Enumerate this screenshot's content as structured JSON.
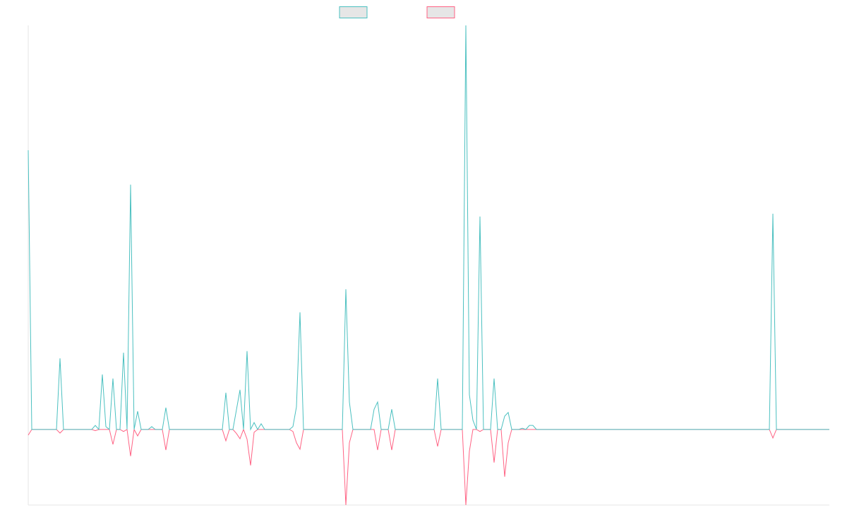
{
  "chart_data": {
    "type": "line",
    "categories": [
      null,
      null,
      null,
      null,
      null,
      null,
      null,
      null,
      null,
      null,
      null,
      null,
      null,
      null,
      null,
      null,
      null,
      null,
      null,
      null,
      null,
      null,
      null,
      null,
      null,
      null,
      null,
      null,
      null,
      null,
      null,
      null,
      null,
      null,
      null,
      null,
      null,
      null,
      null,
      null,
      null,
      null,
      null,
      null,
      null,
      null,
      null,
      null,
      null,
      null,
      null,
      null,
      null,
      null,
      null,
      null,
      null,
      null,
      null,
      null,
      null,
      null,
      null,
      null,
      null,
      null,
      null,
      null,
      null,
      null,
      null,
      null,
      null,
      null,
      null,
      null,
      null,
      null,
      null,
      null,
      null,
      null,
      null,
      null,
      null,
      null,
      null,
      null,
      null,
      null,
      null,
      null,
      null,
      null,
      null,
      null,
      null,
      null,
      null,
      null,
      null,
      null,
      null,
      null,
      null,
      null,
      null,
      null,
      null,
      null,
      null,
      null,
      null,
      null,
      null,
      null,
      null,
      null,
      null,
      null,
      null,
      null,
      null,
      null,
      null,
      null,
      null,
      null,
      null,
      null,
      null,
      null,
      null,
      null,
      null,
      null,
      null,
      null,
      null,
      null,
      null,
      null,
      null,
      null,
      null,
      null,
      null,
      null,
      null,
      null,
      null,
      null,
      null,
      null,
      null,
      null,
      null,
      null,
      null,
      null,
      null,
      null,
      null,
      null,
      null,
      null,
      null,
      null,
      null,
      null,
      null,
      null,
      null,
      null,
      null,
      null,
      null,
      null,
      null,
      null,
      null,
      null,
      null,
      null,
      null,
      null,
      null,
      null,
      null,
      null,
      null,
      null,
      null,
      null,
      null,
      null,
      null,
      null,
      null,
      null,
      null,
      null,
      null,
      null,
      null,
      null,
      null,
      null,
      null,
      null,
      null,
      null,
      null,
      null,
      null,
      null,
      null,
      null,
      null,
      null,
      null,
      null,
      null,
      null,
      null,
      null,
      null,
      null
    ],
    "series": [
      {
        "color": "#4bc0c0",
        "values": [
          69.1,
          0,
          0,
          0,
          0,
          0,
          0,
          0,
          0,
          17.6,
          0,
          0,
          0,
          0,
          0,
          0,
          0,
          0,
          0,
          1,
          0,
          13.6,
          0.7,
          0,
          12.6,
          0,
          0,
          19,
          0,
          60.6,
          0,
          4.5,
          0,
          0,
          0,
          0.7,
          0,
          0,
          0,
          5.4,
          0,
          0,
          0,
          0,
          0,
          0,
          0,
          0,
          0,
          0,
          0,
          0,
          0,
          0,
          0,
          0,
          9.1,
          0,
          0,
          4.9,
          9.8,
          0,
          19.4,
          0,
          1.7,
          0,
          1.4,
          0,
          0,
          0,
          0,
          0,
          0,
          0,
          0,
          0.7,
          5.6,
          29,
          0,
          0,
          0,
          0,
          0,
          0,
          0,
          0,
          0,
          0,
          0,
          0,
          34.7,
          6.8,
          0,
          0,
          0,
          0,
          0,
          0,
          5,
          6.8,
          0,
          0,
          0,
          5,
          0,
          0,
          0,
          0,
          0,
          0,
          0,
          0,
          0,
          0,
          0,
          0,
          12.6,
          0,
          0,
          0,
          0,
          0,
          0,
          0,
          100,
          8.6,
          2.3,
          0,
          52.7,
          0,
          0,
          0,
          12.6,
          0,
          0,
          3.3,
          4.2,
          0,
          0,
          0,
          0.3,
          0,
          1,
          1,
          0,
          0,
          0,
          0,
          0,
          0,
          0,
          0,
          0,
          0,
          0,
          0,
          0,
          0,
          0,
          0,
          0,
          0,
          0,
          0,
          0,
          0,
          0,
          0,
          0,
          0,
          0,
          0,
          0,
          0,
          0,
          0,
          0,
          0,
          0,
          0,
          0,
          0,
          0,
          0,
          0,
          0,
          0,
          0,
          0,
          0,
          0,
          0,
          0,
          0,
          0,
          0,
          0,
          0,
          0,
          0,
          0,
          0,
          0,
          0,
          0,
          0,
          0,
          0,
          0,
          0,
          0,
          53.4,
          0,
          0,
          0,
          0,
          0,
          0,
          0,
          0,
          0,
          0,
          0,
          0,
          0,
          0,
          0,
          0
        ]
      },
      {
        "color": "#ff6384",
        "values": [
          -1.4,
          0,
          0,
          0,
          0,
          0,
          0,
          0,
          0,
          -0.9,
          0,
          0,
          0,
          0,
          0,
          0,
          0,
          0,
          0,
          -0.3,
          0,
          0,
          0,
          0,
          -3.7,
          0,
          0,
          -0.5,
          0,
          -6.6,
          0,
          -1.6,
          0,
          0,
          0,
          0,
          0,
          0,
          0,
          -5.1,
          0,
          0,
          0,
          0,
          0,
          0,
          0,
          0,
          0,
          0,
          0,
          0,
          0,
          0,
          0,
          0,
          -2.8,
          0,
          0,
          -1,
          -2.3,
          0,
          -2.4,
          -8.9,
          -0.7,
          0,
          0,
          0,
          0,
          0,
          0,
          0,
          0,
          0,
          0,
          -0.5,
          -3.3,
          -4.9,
          0,
          0,
          0,
          0,
          0,
          0,
          0,
          0,
          0,
          0,
          0,
          0,
          -18.7,
          -3.3,
          0,
          0,
          0,
          0,
          0,
          0,
          0,
          -5.1,
          0,
          0,
          0,
          -5.1,
          0,
          0,
          0,
          0,
          0,
          0,
          0,
          0,
          0,
          0,
          0,
          0,
          -4.2,
          0,
          0,
          0,
          0,
          0,
          0,
          0,
          -18.7,
          -5.4,
          0,
          0,
          -0.5,
          0,
          0,
          0,
          -8.2,
          0,
          0,
          -11.7,
          -3.3,
          0,
          0,
          0,
          0,
          0,
          0,
          0,
          0,
          0,
          0,
          0,
          0,
          0,
          0,
          0,
          0,
          0,
          0,
          0,
          0,
          0,
          0,
          0,
          0,
          0,
          0,
          0,
          0,
          0,
          0,
          0,
          0,
          0,
          0,
          0,
          0,
          0,
          0,
          0,
          0,
          0,
          0,
          0,
          0,
          0,
          0,
          0,
          0,
          0,
          0,
          0,
          0,
          0,
          0,
          0,
          0,
          0,
          0,
          0,
          0,
          0,
          0,
          0,
          0,
          0,
          0,
          0,
          0,
          0,
          0,
          0,
          0,
          0,
          0,
          -2.1,
          0,
          0,
          0,
          0,
          0,
          0,
          0,
          0,
          0,
          0,
          0,
          0,
          0,
          0,
          0,
          0
        ]
      }
    ],
    "ylim": [
      -18.7,
      100
    ],
    "grid": false
  }
}
